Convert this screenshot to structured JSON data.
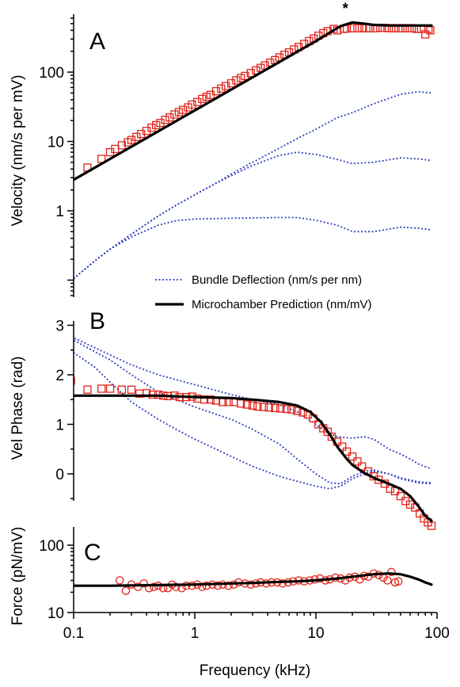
{
  "chart_data": [
    {
      "panel": "A",
      "type": "scatter",
      "ylabel": "Velocity  (nm/s per mV)",
      "xscale": "log",
      "yscale": "log",
      "xlim": [
        0.1,
        100
      ],
      "ylim": [
        0.09,
        1000
      ],
      "yticks": [
        "1",
        "10",
        "100"
      ],
      "annotation": "*",
      "legend": {
        "placement": "bottom-right",
        "entries": [
          "Bundle Deflection (nm/s per nm)",
          "Microchamber Prediction (nm/mV)"
        ]
      },
      "series": [
        {
          "style": "markers-square",
          "color": "#e2231a",
          "x": [
            0.13,
            0.17,
            0.2,
            0.22,
            0.25,
            0.28,
            0.3,
            0.33,
            0.36,
            0.4,
            0.44,
            0.48,
            0.52,
            0.57,
            0.62,
            0.68,
            0.74,
            0.8,
            0.88,
            0.95,
            1.05,
            1.15,
            1.25,
            1.35,
            1.5,
            1.65,
            1.8,
            2.0,
            2.2,
            2.4,
            2.6,
            2.9,
            3.2,
            3.5,
            3.8,
            4.2,
            4.6,
            5.0,
            5.5,
            6.0,
            6.6,
            7.2,
            8.0,
            8.8,
            9.6,
            10.5,
            11.5,
            12.5,
            14,
            15,
            17,
            18,
            20,
            22,
            24,
            26,
            28,
            31,
            34,
            37,
            40,
            44,
            48,
            52,
            57,
            62,
            68,
            74,
            80,
            85,
            88
          ],
          "y": [
            4.2,
            5.6,
            7.0,
            7.8,
            8.8,
            9.7,
            10.5,
            11.6,
            12.8,
            14.2,
            15.8,
            17.2,
            18.5,
            20.5,
            22.2,
            24.5,
            26.5,
            28.5,
            31,
            34,
            37,
            41,
            44,
            47,
            53,
            58,
            63,
            69,
            76,
            82,
            88,
            97,
            106,
            115,
            125,
            137,
            149,
            163,
            178,
            193,
            212,
            230,
            255,
            280,
            305,
            335,
            365,
            390,
            420,
            400,
            420,
            425,
            430,
            430,
            430,
            430,
            430,
            430,
            435,
            435,
            430,
            430,
            430,
            430,
            430,
            430,
            420,
            420,
            350,
            420,
            400
          ]
        },
        {
          "style": "line-solid",
          "color": "#000000",
          "x": [
            0.09,
            0.1,
            0.2,
            0.3,
            0.5,
            0.7,
            1,
            2,
            3,
            5,
            7,
            10,
            13,
            16,
            20,
            25,
            30,
            40,
            50,
            60,
            70,
            80,
            90
          ],
          "y": [
            2.5,
            2.8,
            5.6,
            8.4,
            14,
            19.6,
            28,
            56,
            84,
            140,
            196,
            280,
            370,
            460,
            520,
            500,
            480,
            470,
            470,
            470,
            470,
            470,
            470
          ]
        },
        {
          "style": "line-dotted",
          "color": "#2e3fbf",
          "x": [
            0.09,
            0.1,
            0.15,
            0.2,
            0.3,
            0.5,
            0.7,
            1,
            1.5,
            2,
            3,
            5,
            7,
            10,
            15,
            20,
            30,
            50,
            70,
            90
          ],
          "y": [
            0.09,
            0.105,
            0.19,
            0.28,
            0.46,
            0.84,
            1.2,
            1.7,
            2.5,
            3.4,
            5,
            8,
            11,
            15,
            22,
            26,
            35,
            48,
            52,
            50
          ]
        },
        {
          "style": "line-dotted",
          "color": "#2e3fbf",
          "x": [
            0.09,
            0.1,
            0.15,
            0.2,
            0.3,
            0.5,
            0.7,
            1,
            1.5,
            2,
            3,
            5,
            7,
            10,
            15,
            20,
            30,
            50,
            70,
            90
          ],
          "y": [
            0.09,
            0.105,
            0.19,
            0.28,
            0.46,
            0.84,
            1.2,
            1.7,
            2.5,
            3.2,
            4.5,
            6.3,
            7,
            6.5,
            5.5,
            4.8,
            5.0,
            5.8,
            5.6,
            5.3
          ]
        },
        {
          "style": "line-dotted",
          "color": "#2e3fbf",
          "x": [
            0.09,
            0.1,
            0.15,
            0.2,
            0.3,
            0.5,
            0.7,
            1,
            2,
            3,
            5,
            7,
            10,
            15,
            20,
            30,
            50,
            70,
            90
          ],
          "y": [
            0.09,
            0.105,
            0.19,
            0.28,
            0.42,
            0.62,
            0.72,
            0.76,
            0.78,
            0.79,
            0.8,
            0.8,
            0.73,
            0.62,
            0.5,
            0.5,
            0.58,
            0.56,
            0.53
          ]
        }
      ]
    },
    {
      "panel": "B",
      "type": "scatter",
      "ylabel": "Vel Phase (rad)",
      "xscale": "log",
      "yscale": "linear",
      "xlim": [
        0.1,
        100
      ],
      "ylim": [
        -0.6,
        3
      ],
      "yticks": [
        "0",
        "1",
        "2",
        "3"
      ],
      "series": [
        {
          "style": "markers-square",
          "color": "#e2231a",
          "x": [
            0.095,
            0.13,
            0.17,
            0.2,
            0.25,
            0.3,
            0.35,
            0.4,
            0.45,
            0.5,
            0.55,
            0.6,
            0.68,
            0.75,
            0.85,
            0.95,
            1.05,
            1.2,
            1.35,
            1.5,
            1.7,
            1.9,
            2.1,
            2.4,
            2.7,
            3.0,
            3.3,
            3.7,
            4.1,
            4.6,
            5.1,
            5.7,
            6.3,
            7.0,
            7.8,
            8.6,
            9.5,
            10.5,
            11.5,
            12.5,
            13.5,
            15,
            16.5,
            18,
            20,
            22,
            24,
            27,
            30,
            33,
            37,
            41,
            45,
            50,
            55,
            60,
            66,
            72,
            78,
            84,
            90
          ],
          "y": [
            1.88,
            1.7,
            1.72,
            1.72,
            1.7,
            1.7,
            1.62,
            1.63,
            1.6,
            1.6,
            1.58,
            1.57,
            1.58,
            1.55,
            1.55,
            1.56,
            1.52,
            1.5,
            1.5,
            1.48,
            1.45,
            1.45,
            1.45,
            1.42,
            1.4,
            1.38,
            1.36,
            1.35,
            1.34,
            1.33,
            1.32,
            1.31,
            1.3,
            1.27,
            1.24,
            1.2,
            1.12,
            1.0,
            0.92,
            0.85,
            0.75,
            0.65,
            0.55,
            0.45,
            0.35,
            0.25,
            0.15,
            0.05,
            -0.05,
            -0.12,
            -0.2,
            -0.3,
            -0.35,
            -0.45,
            -0.55,
            -0.62,
            -0.68,
            -0.8,
            -0.9,
            -0.98,
            -1.05
          ]
        },
        {
          "style": "line-solid",
          "color": "#000000",
          "x": [
            0.09,
            0.2,
            0.5,
            1,
            2,
            3,
            5,
            7,
            9,
            11,
            13,
            15,
            18,
            20,
            25,
            30,
            40,
            50,
            60,
            70,
            80,
            90
          ],
          "y": [
            1.58,
            1.58,
            1.58,
            1.55,
            1.53,
            1.5,
            1.45,
            1.38,
            1.25,
            1.05,
            0.8,
            0.55,
            0.3,
            0.18,
            0.02,
            -0.08,
            -0.2,
            -0.3,
            -0.45,
            -0.65,
            -0.85,
            -0.95
          ]
        },
        {
          "style": "line-dotted",
          "color": "#2e3fbf",
          "x": [
            0.09,
            0.1,
            0.2,
            0.3,
            0.5,
            1,
            2,
            3,
            5,
            7,
            10,
            12,
            15,
            20,
            25,
            30,
            40,
            50,
            60,
            70,
            90
          ],
          "y": [
            2.8,
            2.75,
            2.4,
            2.2,
            2.0,
            1.8,
            1.6,
            1.5,
            1.4,
            1.25,
            1.0,
            0.85,
            0.75,
            0.72,
            0.75,
            0.7,
            0.5,
            0.4,
            0.3,
            0.2,
            0.1
          ]
        },
        {
          "style": "line-dotted",
          "color": "#2e3fbf",
          "x": [
            0.09,
            0.1,
            0.2,
            0.3,
            0.5,
            1,
            2,
            3,
            5,
            7,
            10,
            13,
            16,
            20,
            25,
            30,
            40,
            50,
            70,
            90
          ],
          "y": [
            2.78,
            2.7,
            2.3,
            2.0,
            1.65,
            1.35,
            1.1,
            0.9,
            0.6,
            0.3,
            0.0,
            -0.18,
            -0.2,
            -0.05,
            0.05,
            0.08,
            0.0,
            -0.08,
            -0.16,
            -0.18
          ]
        },
        {
          "style": "line-dotted",
          "color": "#2e3fbf",
          "x": [
            0.09,
            0.1,
            0.15,
            0.2,
            0.3,
            0.5,
            0.7,
            1,
            1.5,
            2,
            3,
            5,
            7,
            10,
            13,
            16,
            20,
            25,
            30,
            40,
            50,
            70,
            90
          ],
          "y": [
            2.55,
            2.45,
            2.15,
            1.85,
            1.45,
            1.1,
            0.9,
            0.7,
            0.5,
            0.35,
            0.15,
            -0.05,
            -0.15,
            -0.25,
            -0.3,
            -0.25,
            -0.1,
            0.0,
            0.05,
            0.0,
            -0.1,
            -0.18,
            -0.2
          ]
        }
      ]
    },
    {
      "panel": "C",
      "type": "scatter",
      "ylabel": "Force (pN/mV)",
      "xlabel": "Frequency (kHz)",
      "xscale": "log",
      "yscale": "log",
      "xlim": [
        0.1,
        100
      ],
      "ylim": [
        10,
        150
      ],
      "xticks": [
        "0.1",
        "1",
        "10",
        "100"
      ],
      "yticks": [
        "10",
        "100"
      ],
      "series": [
        {
          "style": "markers-circle",
          "color": "#e2231a",
          "x": [
            0.24,
            0.27,
            0.3,
            0.34,
            0.38,
            0.42,
            0.46,
            0.5,
            0.55,
            0.6,
            0.65,
            0.7,
            0.78,
            0.85,
            0.95,
            1.05,
            1.15,
            1.25,
            1.4,
            1.55,
            1.7,
            1.9,
            2.1,
            2.3,
            2.6,
            2.9,
            3.2,
            3.5,
            3.9,
            4.3,
            4.8,
            5.3,
            5.9,
            6.5,
            7.2,
            8.0,
            8.9,
            9.8,
            10.8,
            12,
            13,
            14.5,
            16,
            17.5,
            19,
            21,
            23,
            25,
            27,
            30,
            33,
            36,
            39,
            42,
            45,
            48
          ],
          "y": [
            30,
            21,
            26,
            24,
            27,
            23,
            24,
            25,
            23,
            23,
            26,
            24,
            23,
            25,
            25,
            26,
            24,
            25,
            26,
            25,
            26,
            25,
            26,
            28,
            27,
            26,
            27,
            28,
            27,
            28,
            28,
            27,
            28,
            29,
            30,
            29,
            30,
            31,
            32,
            30,
            31,
            33,
            32,
            30,
            33,
            34,
            31,
            35,
            34,
            38,
            36,
            33,
            30,
            40,
            28,
            29
          ]
        },
        {
          "style": "line-solid",
          "color": "#000000",
          "x": [
            0.09,
            0.2,
            0.5,
            1,
            2,
            3,
            5,
            7,
            10,
            15,
            20,
            30,
            40,
            50,
            60,
            70,
            80,
            90
          ],
          "y": [
            25,
            25,
            25.5,
            26,
            27,
            27.5,
            28.5,
            29,
            30,
            32,
            34,
            37,
            38,
            37,
            34,
            31,
            28,
            26
          ]
        }
      ]
    }
  ]
}
